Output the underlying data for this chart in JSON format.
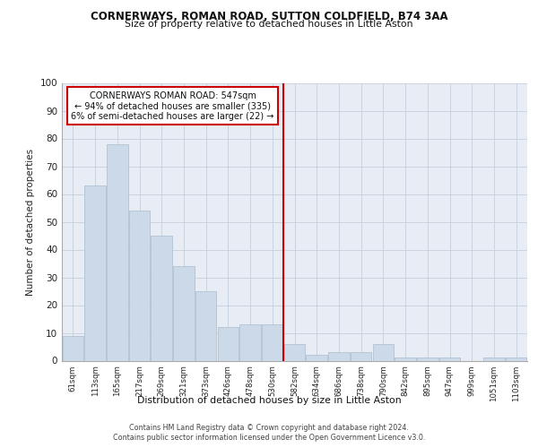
{
  "title1": "CORNERWAYS, ROMAN ROAD, SUTTON COLDFIELD, B74 3AA",
  "title2": "Size of property relative to detached houses in Little Aston",
  "xlabel": "Distribution of detached houses by size in Little Aston",
  "ylabel": "Number of detached properties",
  "bar_labels": [
    "61sqm",
    "113sqm",
    "165sqm",
    "217sqm",
    "269sqm",
    "321sqm",
    "373sqm",
    "426sqm",
    "478sqm",
    "530sqm",
    "582sqm",
    "634sqm",
    "686sqm",
    "738sqm",
    "790sqm",
    "842sqm",
    "895sqm",
    "947sqm",
    "999sqm",
    "1051sqm",
    "1103sqm"
  ],
  "bar_values": [
    9,
    63,
    78,
    54,
    45,
    34,
    25,
    12,
    13,
    13,
    6,
    2,
    3,
    3,
    6,
    1,
    1,
    1,
    0,
    1,
    1
  ],
  "bar_color": "#ccd9e8",
  "bar_edge_color": "#aabccc",
  "property_line_x": 9.5,
  "annotation_text": "CORNERWAYS ROMAN ROAD: 547sqm\n← 94% of detached houses are smaller (335)\n6% of semi-detached houses are larger (22) →",
  "annotation_box_color": "#ffffff",
  "annotation_border_color": "#cc0000",
  "vline_color": "#cc0000",
  "grid_color": "#c5cedd",
  "background_color": "#e8edf5",
  "ylim": [
    0,
    100
  ],
  "yticks": [
    0,
    10,
    20,
    30,
    40,
    50,
    60,
    70,
    80,
    90,
    100
  ],
  "footer1": "Contains HM Land Registry data © Crown copyright and database right 2024.",
  "footer2": "Contains public sector information licensed under the Open Government Licence v3.0."
}
